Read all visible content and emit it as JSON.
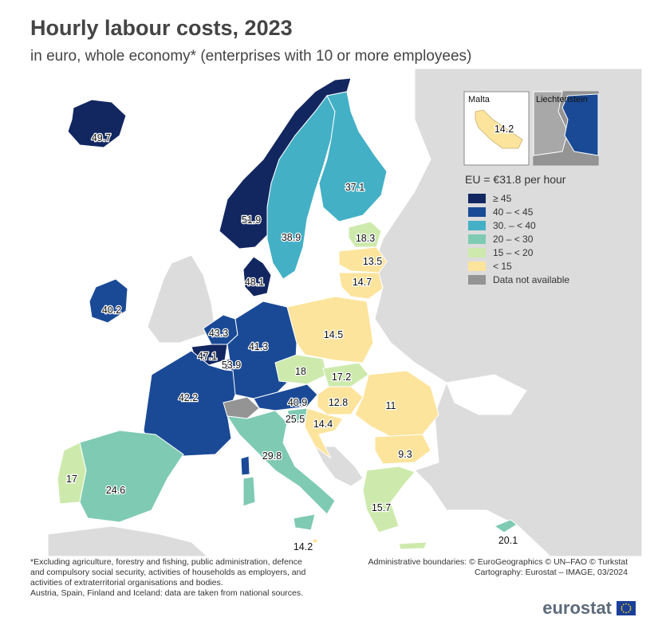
{
  "title": "Hourly labour costs, 2023",
  "subtitle": "in euro, whole economy* (enterprises with 10 or more employees)",
  "legend": {
    "title": "EU = €31.8 per hour",
    "items": [
      {
        "label": "≥ 45",
        "color": "#122760"
      },
      {
        "label": "40 – < 45",
        "color": "#1a4a96"
      },
      {
        "label": "30. – < 40",
        "color": "#43b0c6"
      },
      {
        "label": "20 – < 30",
        "color": "#7fcab3"
      },
      {
        "label": "15 – < 20",
        "color": "#cdeaac"
      },
      {
        "label": "< 15",
        "color": "#fde49c"
      },
      {
        "label": "Data not available",
        "color": "#949494"
      }
    ]
  },
  "insets": {
    "malta": "Malta",
    "malta_value": "14.2",
    "liechtenstein": "Liechtenstein"
  },
  "countries": [
    {
      "name": "Iceland",
      "value": "49.7"
    },
    {
      "name": "Norway",
      "value": "51.9"
    },
    {
      "name": "Sweden",
      "value": "38.9"
    },
    {
      "name": "Finland",
      "value": "37.1"
    },
    {
      "name": "Estonia",
      "value": "18.3"
    },
    {
      "name": "Latvia",
      "value": "13.5"
    },
    {
      "name": "Lithuania",
      "value": "14.7"
    },
    {
      "name": "Denmark",
      "value": "48.1"
    },
    {
      "name": "Ireland",
      "value": "40.2"
    },
    {
      "name": "Netherlands",
      "value": "43.3"
    },
    {
      "name": "Belgium",
      "value": "47.1"
    },
    {
      "name": "Luxembourg",
      "value": "53.9"
    },
    {
      "name": "Germany",
      "value": "41.3"
    },
    {
      "name": "Poland",
      "value": "14.5"
    },
    {
      "name": "Czechia",
      "value": "18"
    },
    {
      "name": "Slovakia",
      "value": "17.2"
    },
    {
      "name": "France",
      "value": "42.2"
    },
    {
      "name": "Austria",
      "value": "40.9"
    },
    {
      "name": "Hungary",
      "value": "12.8"
    },
    {
      "name": "Romania",
      "value": "11"
    },
    {
      "name": "Slovenia",
      "value": "25.5"
    },
    {
      "name": "Croatia",
      "value": "14.4"
    },
    {
      "name": "Bulgaria",
      "value": "9.3"
    },
    {
      "name": "Italy",
      "value": "29.8"
    },
    {
      "name": "Portugal",
      "value": "17"
    },
    {
      "name": "Spain",
      "value": "24.6"
    },
    {
      "name": "Greece",
      "value": "15.7"
    },
    {
      "name": "Malta",
      "value": "14.2"
    },
    {
      "name": "Cyprus",
      "value": "20.1"
    }
  ],
  "footnote": [
    "*Excluding agriculture, forestry and fishing, public administration, defence",
    "and compulsory social security, activities of households as employers, and",
    "activities of extraterritorial organisations and bodies.",
    "Austria, Spain, Finland and Iceland: data are taken from national sources."
  ],
  "credits": [
    "Administrative boundaries: © EuroGeographics © UN–FAO © Turkstat",
    "Cartography: Eurostat – IMAGE, 03/2024"
  ],
  "logo_text": "eurostat"
}
